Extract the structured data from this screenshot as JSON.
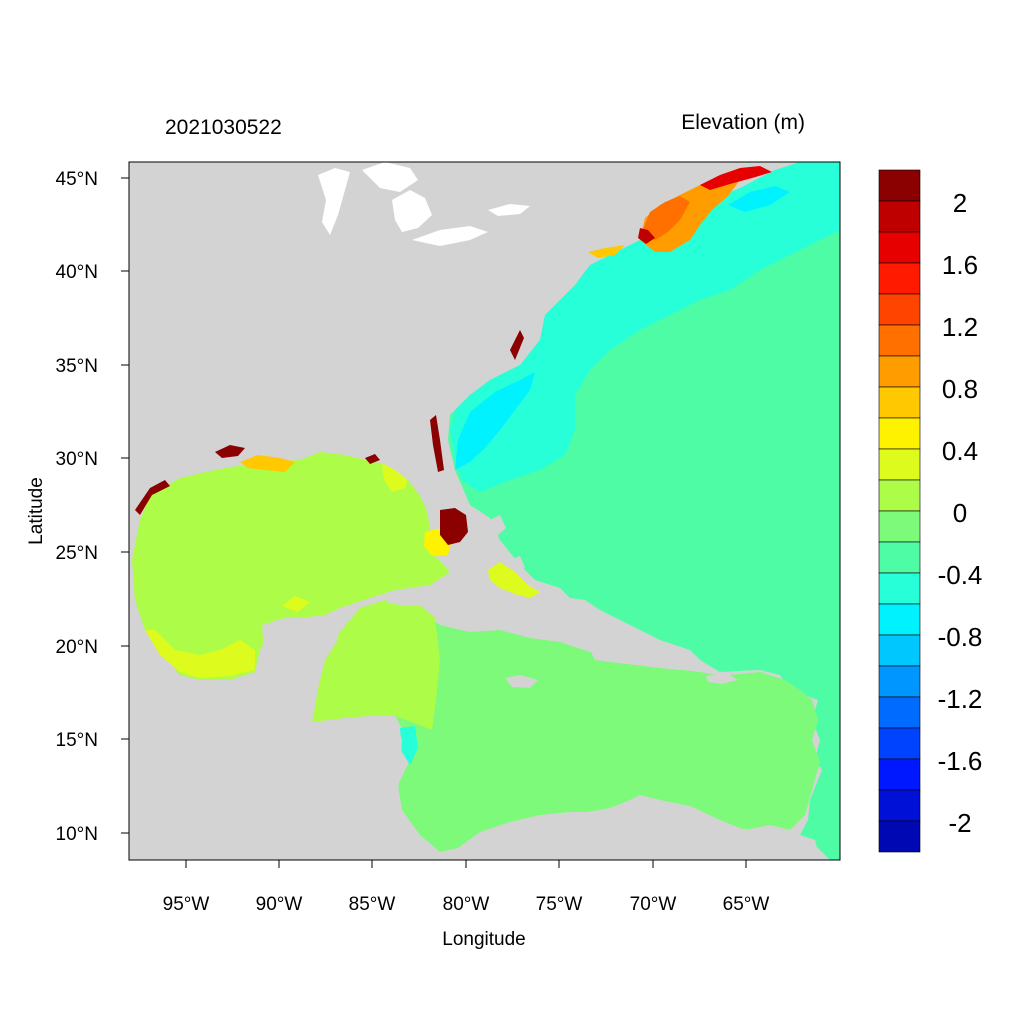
{
  "header": {
    "timestamp": "2021030522",
    "variable": "Elevation (m)"
  },
  "axes": {
    "xlabel": "Longitude",
    "ylabel": "Latitude",
    "xticks": [
      "95°W",
      "90°W",
      "85°W",
      "80°W",
      "75°W",
      "70°W",
      "65°W"
    ],
    "yticks": [
      "45°N",
      "40°N",
      "35°N",
      "30°N",
      "25°N",
      "20°N",
      "15°N",
      "10°N"
    ]
  },
  "colorbar": {
    "labels": [
      "2",
      "1.6",
      "1.2",
      "0.8",
      "0.4",
      "0",
      "-0.4",
      "-0.8",
      "-1.2",
      "-1.6",
      "-2"
    ],
    "colors": [
      "#8b0000",
      "#be0000",
      "#e60000",
      "#ff1a00",
      "#ff4400",
      "#ff7000",
      "#ff9c00",
      "#ffc800",
      "#fff200",
      "#ddfc1e",
      "#adfc48",
      "#7dfa7a",
      "#4ffca6",
      "#26ffd8",
      "#00f2ff",
      "#00c8ff",
      "#0096ff",
      "#006cff",
      "#0043ff",
      "#0018ff",
      "#0010d6",
      "#0008b4"
    ]
  },
  "colors": {
    "land": "#d3d3d3",
    "gulf": "#adfc48",
    "caribbean": "#7dfa7a",
    "atlantic": "#4ffca6",
    "coastal": "#26ffd8"
  }
}
